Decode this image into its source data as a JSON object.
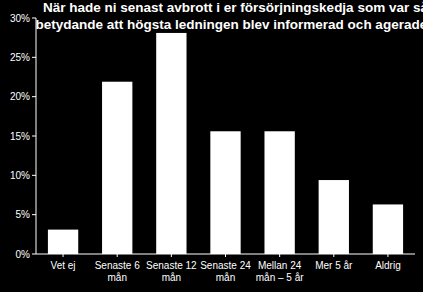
{
  "chart_data": {
    "type": "bar",
    "title": [
      "När hade ni senast avbrott i er försörjningskedja som var så",
      "betydande  att högsta ledningen blev informerad och agerade?"
    ],
    "categories": [
      "Vet ej",
      "Senaste 6 mån",
      "Senaste 12 mån",
      "Senaste 24 mån",
      "Mellan 24 mån – 5 år",
      "Mer 5 år",
      "Aldrig"
    ],
    "values": [
      3.1,
      21.9,
      28.1,
      15.6,
      15.6,
      9.4,
      6.3
    ],
    "color": "#ffffff",
    "ylim": [
      0,
      30
    ],
    "yticks": [
      {
        "value": 0,
        "label": "0%"
      },
      {
        "value": 5,
        "label": "5%"
      },
      {
        "value": 10,
        "label": "10%"
      },
      {
        "value": 15,
        "label": "15%"
      },
      {
        "value": 20,
        "label": "20%"
      },
      {
        "value": 25,
        "label": "25%"
      },
      {
        "value": 30,
        "label": "30%"
      }
    ],
    "grid": false
  }
}
